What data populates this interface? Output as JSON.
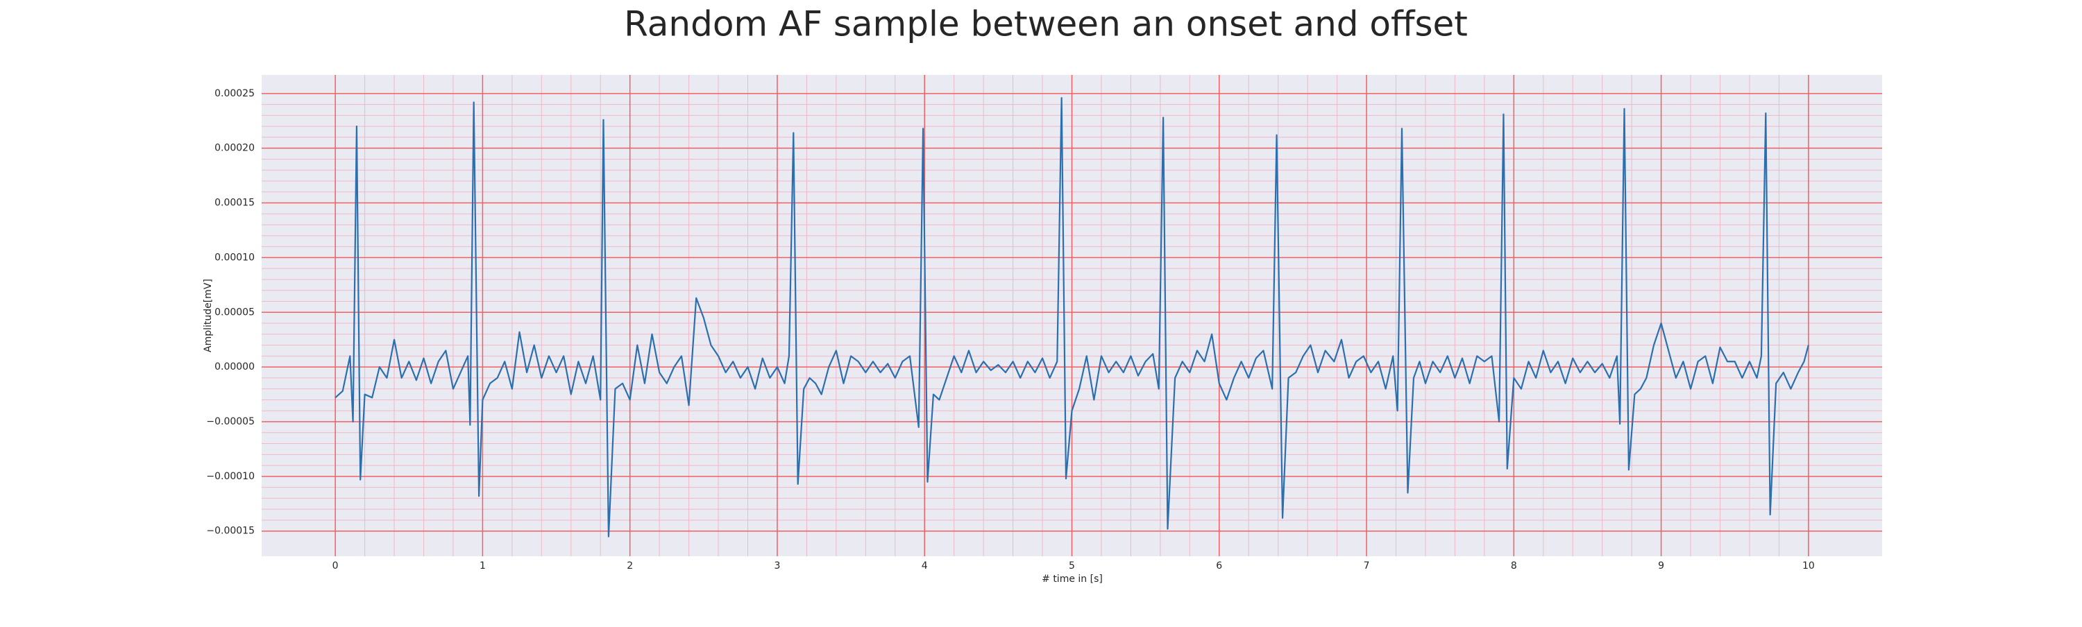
{
  "chart_data": {
    "type": "line",
    "title": "Random AF sample between an onset and offset",
    "xlabel": "# time in [s]",
    "ylabel": "Amplitude[mV]",
    "color": "#2b6fae",
    "grid": true,
    "xlim": [
      -0.5,
      10.5
    ],
    "ylim": [
      -0.000173,
      0.000267
    ],
    "xticks": [
      0,
      1,
      2,
      3,
      4,
      5,
      6,
      7,
      8,
      9,
      10
    ],
    "yticks": [
      0.00025,
      {
        "value": 0.0002,
        "label": "0.00020"
      },
      0.00015,
      {
        "value": 0.0001,
        "label": "0.00010"
      },
      5e-05,
      {
        "value": 0,
        "label": "0.00000"
      },
      {
        "value": -5e-05,
        "label": "−0.00005"
      },
      {
        "value": -0.0001,
        "label": "−0.00010"
      },
      {
        "value": -0.00015,
        "label": "−0.00015"
      }
    ],
    "x": [
      0,
      0.05,
      0.1,
      0.12,
      0.145,
      0.17,
      0.2,
      0.25,
      0.3,
      0.35,
      0.4,
      0.45,
      0.5,
      0.55,
      0.6,
      0.65,
      0.7,
      0.75,
      0.8,
      0.85,
      0.9,
      0.915,
      0.94,
      0.975,
      1.0,
      1.05,
      1.1,
      1.15,
      1.2,
      1.25,
      1.3,
      1.35,
      1.4,
      1.45,
      1.5,
      1.55,
      1.6,
      1.65,
      1.7,
      1.75,
      1.8,
      1.82,
      1.855,
      1.9,
      1.95,
      2.0,
      2.05,
      2.1,
      2.15,
      2.2,
      2.25,
      2.3,
      2.35,
      2.4,
      2.45,
      2.5,
      2.55,
      2.6,
      2.65,
      2.7,
      2.75,
      2.8,
      2.85,
      2.9,
      2.95,
      3.0,
      3.05,
      3.08,
      3.11,
      3.14,
      3.18,
      3.22,
      3.26,
      3.3,
      3.35,
      3.4,
      3.45,
      3.5,
      3.55,
      3.6,
      3.65,
      3.7,
      3.75,
      3.8,
      3.85,
      3.9,
      3.96,
      3.99,
      4.02,
      4.06,
      4.1,
      4.15,
      4.2,
      4.25,
      4.3,
      4.35,
      4.4,
      4.45,
      4.5,
      4.55,
      4.6,
      4.65,
      4.7,
      4.75,
      4.8,
      4.85,
      4.9,
      4.93,
      4.96,
      5.0,
      5.05,
      5.1,
      5.15,
      5.2,
      5.25,
      5.3,
      5.35,
      5.4,
      5.45,
      5.5,
      5.55,
      5.59,
      5.62,
      5.65,
      5.7,
      5.75,
      5.8,
      5.85,
      5.9,
      5.95,
      6.0,
      6.05,
      6.1,
      6.15,
      6.2,
      6.25,
      6.3,
      6.36,
      6.39,
      6.43,
      6.47,
      6.52,
      6.57,
      6.62,
      6.67,
      6.72,
      6.78,
      6.83,
      6.88,
      6.93,
      6.98,
      7.03,
      7.08,
      7.13,
      7.18,
      7.21,
      7.24,
      7.28,
      7.32,
      7.36,
      7.4,
      7.45,
      7.5,
      7.55,
      7.6,
      7.65,
      7.7,
      7.75,
      7.8,
      7.85,
      7.9,
      7.93,
      7.955,
      8.0,
      8.05,
      8.1,
      8.15,
      8.2,
      8.25,
      8.3,
      8.35,
      8.4,
      8.45,
      8.5,
      8.55,
      8.6,
      8.65,
      8.7,
      8.72,
      8.75,
      8.78,
      8.82,
      8.86,
      8.9,
      8.95,
      9.0,
      9.05,
      9.1,
      9.15,
      9.2,
      9.25,
      9.3,
      9.35,
      9.4,
      9.45,
      9.5,
      9.55,
      9.6,
      9.65,
      9.68,
      9.71,
      9.74,
      9.78,
      9.83,
      9.88,
      9.93,
      9.97,
      10.0
    ],
    "values": [
      -2.8e-05,
      -2.2e-05,
      1e-05,
      -5e-05,
      0.00022,
      -0.000103,
      -2.5e-05,
      -2.8e-05,
      0,
      -1e-05,
      2.5e-05,
      -1e-05,
      5e-06,
      -1.2e-05,
      8e-06,
      -1.5e-05,
      5e-06,
      1.5e-05,
      -2e-05,
      -5e-06,
      1e-05,
      -5.3e-05,
      0.000242,
      -0.000118,
      -3e-05,
      -1.5e-05,
      -1e-05,
      5e-06,
      -2e-05,
      3.2e-05,
      -5e-06,
      2e-05,
      -1e-05,
      1e-05,
      -5e-06,
      1e-05,
      -2.5e-05,
      5e-06,
      -1.5e-05,
      1e-05,
      -3e-05,
      0.000226,
      -0.000155,
      -2e-05,
      -1.5e-05,
      -3e-05,
      2e-05,
      -1.5e-05,
      3e-05,
      -5e-06,
      -1.5e-05,
      0,
      1e-05,
      -3.5e-05,
      6.3e-05,
      4.5e-05,
      2e-05,
      1e-05,
      -5e-06,
      5e-06,
      -1e-05,
      0,
      -2e-05,
      8e-06,
      -1e-05,
      0,
      -1.5e-05,
      1e-05,
      0.000214,
      -0.000107,
      -2e-05,
      -1e-05,
      -1.5e-05,
      -2.5e-05,
      0,
      1.5e-05,
      -1.5e-05,
      1e-05,
      5e-06,
      -5e-06,
      5e-06,
      -5e-06,
      3e-06,
      -1e-05,
      5e-06,
      1e-05,
      -5.5e-05,
      0.000218,
      -0.000105,
      -2.5e-05,
      -3e-05,
      -1e-05,
      1e-05,
      -5e-06,
      1.5e-05,
      -5e-06,
      5e-06,
      -3e-06,
      2e-06,
      -5e-06,
      5e-06,
      -1e-05,
      5e-06,
      -5e-06,
      8e-06,
      -1e-05,
      5e-06,
      0.000246,
      -0.000102,
      -4e-05,
      -2e-05,
      1e-05,
      -3e-05,
      1e-05,
      -5e-06,
      5e-06,
      -5e-06,
      1e-05,
      -8e-06,
      5e-06,
      1.2e-05,
      -2e-05,
      0.000228,
      -0.000148,
      -1e-05,
      5e-06,
      -5e-06,
      1.5e-05,
      5e-06,
      3e-05,
      -1.5e-05,
      -3e-05,
      -1e-05,
      5e-06,
      -1e-05,
      8e-06,
      1.5e-05,
      -2e-05,
      0.000212,
      -0.000138,
      -1e-05,
      -5e-06,
      1e-05,
      2e-05,
      -5e-06,
      1.5e-05,
      5e-06,
      2.5e-05,
      -1e-05,
      5e-06,
      1e-05,
      -5e-06,
      5e-06,
      -2e-05,
      1e-05,
      -4e-05,
      0.000218,
      -0.000115,
      -1e-05,
      5e-06,
      -1.5e-05,
      5e-06,
      -5e-06,
      1e-05,
      -1e-05,
      8e-06,
      -1.5e-05,
      1e-05,
      5e-06,
      1e-05,
      -5e-05,
      0.000231,
      -9.3e-05,
      -1e-05,
      -2e-05,
      5e-06,
      -1e-05,
      1.5e-05,
      -5e-06,
      5e-06,
      -1.5e-05,
      8e-06,
      -5e-06,
      5e-06,
      -5e-06,
      3e-06,
      -1e-05,
      1e-05,
      -5.2e-05,
      0.000236,
      -9.4e-05,
      -2.5e-05,
      -2e-05,
      -1e-05,
      2e-05,
      4e-05,
      1.5e-05,
      -1e-05,
      5e-06,
      -2e-05,
      5e-06,
      1e-05,
      -1.5e-05,
      1.8e-05,
      5e-06,
      5e-06,
      -1e-05,
      5e-06,
      -1e-05,
      1e-05,
      0.000232,
      -0.000135,
      -1.5e-05,
      -5e-06,
      -2e-05,
      -5e-06,
      5e-06,
      2e-05
    ]
  }
}
